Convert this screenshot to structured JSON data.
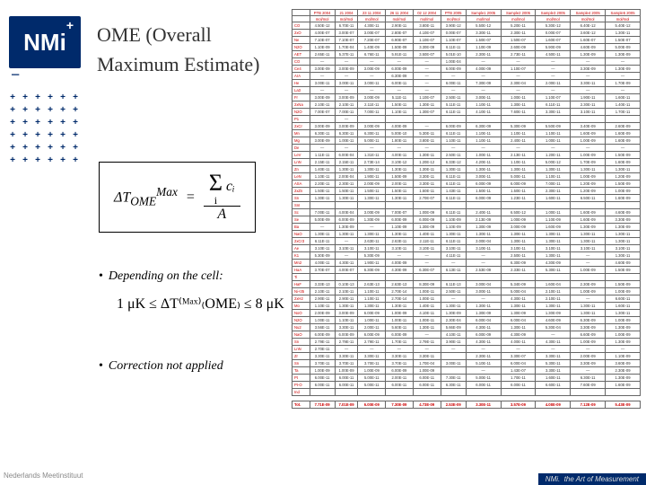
{
  "logo": {
    "text": "NMi",
    "plus": "+",
    "minus": "−"
  },
  "plusgrid_rows": 6,
  "plusgrid_cols": 6,
  "title": "OME (Overall Maximum Estimate)",
  "formula1": {
    "lhs_prefix": "Δ",
    "lhs_body": "T",
    "lhs_sup": "Max",
    "lhs_sub": "OME",
    "eq": "=",
    "sigma": "Σ",
    "sigma_top": "",
    "sigma_bot": "i",
    "sigma_arg": "cᵢ",
    "denom": "A"
  },
  "bullet1": "Depending on the cell:",
  "formula2": "1 μK ≤ ΔT⁽ᴹᵃˣ⁾₍OME₎ ≤ 8 μK",
  "bullet2": "Correction not applied",
  "footer_left": "Nederlands Meetinstituut",
  "footer_right_a": "NMi.",
  "footer_right_b": "the Art of Measurement",
  "table": {
    "head_blank": "",
    "cols": [
      {
        "h1": "PTB 2004",
        "h2": "mol/mol"
      },
      {
        "h1": "21 2004",
        "h2": "mol/mol"
      },
      {
        "h1": "23 11 2004",
        "h2": "mol/mol"
      },
      {
        "h1": "26 11 2004",
        "h2": "mol/mol"
      },
      {
        "h1": "02 12 2004",
        "h2": "mol/mol"
      },
      {
        "h1": "PTB 2005",
        "h2": "mol/mol"
      },
      {
        "h1": "Sample1 2005",
        "h2": "mol/mol"
      },
      {
        "h1": "Sample2 2005",
        "h2": "mol/mol"
      },
      {
        "h1": "Sample3 2005",
        "h2": "mol/mol"
      },
      {
        "h1": "Sample4 2005",
        "h2": "mol/mol"
      },
      {
        "h1": "Sample5 2005",
        "h2": "mol/mol"
      }
    ],
    "rows": [
      {
        "lab": "CO",
        "v": [
          "4.50E-12",
          "6.70E-11",
          "4.30E-11",
          "2.90E-11",
          "3.80E-11",
          "3.90E-12",
          "5.50E-12",
          "5.20E-11",
          "5.30E-12",
          "6.40E-12",
          "5.40E-12"
        ]
      },
      {
        "lab": "2xO",
        "v": [
          "4.00E-07",
          "3.00E-07",
          "3.00E-07",
          "2.80E-07",
          "4.10E-07",
          "0.00E-07",
          "3.30E-11",
          "2.30E-11",
          "0.00E-07",
          "3.60E-12",
          "1.30E-11"
        ]
      },
      {
        "lab": "Ne",
        "v": [
          "7.10E-07",
          "7.10E-07",
          "7.20E-07",
          "6.90E-07",
          "1.10E-07",
          "1.10E-07",
          "1.50E-07",
          "1.50E-07",
          "1.60E-07",
          "1.60E-07",
          "1.50E-07"
        ]
      },
      {
        "lab": "N2O",
        "v": [
          "1.10E-09",
          "1.70E-04",
          "1.40E-09",
          "1.50E-09",
          "3.30E-09",
          "6.11E-11",
          "1.10E-09",
          "2.60E-09",
          "5.90E-09",
          "4.60E-09",
          "5.00E-09"
        ]
      },
      {
        "lab": "AET",
        "v": [
          "2.65E-11",
          "5.37E-11",
          "6.76E-11",
          "5.91E-11",
          "3.50E-07",
          "5.01E-10",
          "2.30E-11",
          "2.73E-11",
          "4.50E-11",
          "1.30E-09",
          "1.30E-09"
        ]
      },
      {
        "lab": "CO",
        "v": [
          "—",
          "—",
          "—",
          "—",
          "—",
          "1.00E-04",
          "—",
          "—",
          "—",
          "—",
          "—"
        ]
      },
      {
        "lab": "Ce4",
        "v": [
          "3.00E-09",
          "3.00E-09",
          "3.00E-09",
          "6.00E-09",
          "—",
          "6.00E-09",
          "4.00E-09",
          "1.10E-07",
          "—",
          "3.30E-09",
          "1.30E-09"
        ]
      },
      {
        "lab": "ArA",
        "v": [
          "—",
          "—",
          "—",
          "6.30E-09",
          "—",
          "—",
          "—",
          "—",
          "—",
          "—",
          "—"
        ]
      },
      {
        "lab": "He",
        "v": [
          "3.00E-11",
          "3.00E-11",
          "3.00E-11",
          "6.00E-11",
          "—",
          "6.00E-11",
          "7.30E-09",
          "2.30E-04",
          "2.00E-11",
          "3.30E-11",
          "1.70E-09"
        ]
      },
      {
        "lab": "La3",
        "v": [
          "—",
          "—",
          "—",
          "—",
          "—",
          "—",
          "—",
          "—",
          "—",
          "—",
          "—"
        ]
      },
      {
        "lab": "Fr",
        "v": [
          "3.00E-09",
          "3.00E-09",
          "3.00E-09",
          "5.11E-11",
          "1.10E-07",
          "2.50E-11",
          "3.00E-11",
          "1.00E-11",
          "1.10E-07",
          "1.90E-11",
          "1.60E-11"
        ]
      },
      {
        "lab": "2xNa",
        "v": [
          "2.10E-11",
          "2.10E-11",
          "2.11E-11",
          "1.50E-11",
          "1.30E-11",
          "5.11E-11",
          "1.10E-11",
          "1.30E-11",
          "6.11E-11",
          "2.30E-11",
          "1.40E-11"
        ]
      },
      {
        "lab": "N2O",
        "v": [
          "7.00E-07",
          "7.00E-11",
          "7.00E-11",
          "1.10E-11",
          "1.30E-07",
          "6.11E-11",
          "4.10E-11",
          "7.60E-11",
          "3.30E-11",
          "3.10E-11",
          "1.70E-11"
        ]
      },
      {
        "lab": "P1",
        "v": [
          "",
          "—",
          "",
          "",
          "",
          "",
          "",
          "",
          "",
          "",
          ""
        ]
      },
      {
        "lab": "2xCr",
        "v": [
          "3.00E-09",
          "3.00E-09",
          "3.00E-09",
          "4.00E-09",
          "—",
          "6.00E-09",
          "6.30E-09",
          "5.30E-09",
          "5.50E-09",
          "3.40E-09",
          "2.60E-09"
        ]
      },
      {
        "lab": "Mn",
        "v": [
          "6.30E-11",
          "6.30E-11",
          "6.30E-11",
          "5.00E-10",
          "5.30E-11",
          "6.11E-11",
          "1.10E-11",
          "1.10E-11",
          "1.10E-11",
          "1.60E-09",
          "1.60E-09"
        ]
      },
      {
        "lab": "Mg",
        "v": [
          "3.00E-09",
          "1.00E-11",
          "5.00E-11",
          "1.80E-11",
          "3.80E-11",
          "1.10E-11",
          "1.10E-11",
          "2.40E-11",
          "1.00E-11",
          "1.00E-09",
          "1.60E-09"
        ]
      },
      {
        "lab": "De",
        "v": [
          "—",
          "—",
          "—",
          "—",
          "—",
          "—",
          "—",
          "—",
          "—",
          "—",
          "—"
        ]
      },
      {
        "lab": "LeV",
        "v": [
          "1.11E-11",
          "6.00E-04",
          "1.31E-11",
          "4.00E-11",
          "1.30E-11",
          "2.50E-11",
          "1.00E-11",
          "2.13E-11",
          "1.20E-11",
          "1.00E-09",
          "1.50E-09"
        ]
      },
      {
        "lab": "LnN",
        "v": [
          "2.15E-11",
          "2.15E-11",
          "2.73E-14",
          "3.10E-12",
          "1.20E-12",
          "6.33E-12",
          "4.20E-11",
          "1.10E-11",
          "5.00E-12",
          "1.70E-09",
          "1.60E-09"
        ]
      },
      {
        "lab": "Zn",
        "v": [
          "1.40E-11",
          "1.30E-11",
          "1.30E-11",
          "1.30E-11",
          "1.30E-11",
          "1.30E-11",
          "1.30E-11",
          "1.30E-11",
          "1.30E-11",
          "1.30E-11",
          "1.30E-11"
        ]
      },
      {
        "lab": "LeN",
        "v": [
          "1.10E-11",
          "2.00E-04",
          "1.90E-11",
          "1.50E-09",
          "3.30E-11",
          "6.11E-11",
          "3.00E-11",
          "5.00E-11",
          "1.10E-11",
          "1.00E-09",
          "1.20E-09"
        ]
      },
      {
        "lab": "ASA",
        "v": [
          "2.20E-11",
          "2.30E-11",
          "2.00E-09",
          "2.00E-11",
          "3.30E-11",
          "6.11E-11",
          "6.00E-09",
          "6.00E-09",
          "7.00E-11",
          "1.20E-09",
          "1.50E-09"
        ]
      },
      {
        "lab": "2xZn",
        "v": [
          "1.50E-11",
          "1.50E-11",
          "1.50E-11",
          "1.50E-11",
          "1.50E-11",
          "1.43E-11",
          "1.50E-11",
          "1.50E-11",
          "2.30E-11",
          "1.20E-09",
          "1.00E-09"
        ]
      },
      {
        "lab": "Sn",
        "v": [
          "1.30E-11",
          "1.30E-11",
          "1.30E-11",
          "1.30E-11",
          "2.70E-07",
          "6.11E-11",
          "6.00E-09",
          "1.23E-11",
          "1.60E-11",
          "6.50E-11",
          "1.60E-09"
        ]
      },
      {
        "lab": "SnI",
        "v": [
          "",
          "",
          "",
          "",
          "",
          "",
          "",
          "",
          "",
          "",
          ""
        ]
      },
      {
        "lab": "Sc",
        "v": [
          "7.00E-11",
          "4.00E-04",
          "3.00E-09",
          "7.00E-07",
          "1.00E-09",
          "6.11E-11",
          "2.40E-11",
          "6.50E-12",
          "1.00E-11",
          "1.60E-09",
          "4.60E-09"
        ]
      },
      {
        "lab": "Se",
        "v": [
          "5.00E-09",
          "6.00E-09",
          "1.30E-09",
          "6.00E-09",
          "6.00E-09",
          "1.10E-09",
          "2.13E-09",
          "1.00E-09",
          "1.10E-09",
          "1.60E-09",
          "3.30E-09"
        ]
      },
      {
        "lab": "Ba",
        "v": [
          "—",
          "1.30E-09",
          "—",
          "1.10E-09",
          "1.30E-09",
          "1.10E-09",
          "1.30E-09",
          "3.00E-09",
          "1.60E-09",
          "1.30E-09",
          "1.30E-09"
        ]
      },
      {
        "lab": "NaO",
        "v": [
          "1.30E-11",
          "1.30E-11",
          "1.30E-11",
          "1.30E-11",
          "1.40E-11",
          "1.30E-11",
          "1.30E-11",
          "1.30E-11",
          "1.30E-11",
          "1.30E-11",
          "1.30E-11"
        ]
      },
      {
        "lab": "2xCr3",
        "v": [
          "6.11E-11",
          "—",
          "2.63E-11",
          "2.63E-11",
          "2.11E-11",
          "6.11E-11",
          "3.00E-04",
          "1.30E-11",
          "1.30E-11",
          "1.30E-11",
          "1.30E-11"
        ]
      },
      {
        "lab": "Ae",
        "v": [
          "3.10E-11",
          "3.10E-11",
          "3.10E-11",
          "3.10E-11",
          "3.10E-11",
          "3.10E-11",
          "3.10E-11",
          "3.10E-11",
          "3.10E-11",
          "3.10E-11",
          "3.10E-11"
        ]
      },
      {
        "lab": "K1",
        "v": [
          "5.30E-09",
          "—",
          "5.30E-09",
          "—",
          "—",
          "4.11E-11",
          "—",
          "2.50E-11",
          "1.30E-11",
          "—",
          "1.30E-11"
        ]
      },
      {
        "lab": "Mn2",
        "v": [
          "4.00E-11",
          "4.30E-11",
          "1.90E-11",
          "4.00E-09",
          "—",
          "—",
          "—",
          "6.30E-09",
          "4.30E-09",
          "—",
          "4.60E-09"
        ]
      },
      {
        "lab": "HaA",
        "v": [
          "3.70E-07",
          "4.00E-07",
          "6.30E-09",
          "4.30E-09",
          "6.30E-07",
          "6.13E-11",
          "2.53E-09",
          "2.33E-11",
          "5.30E-11",
          "1.00E-09",
          "1.50E-09"
        ]
      },
      {
        "lab": "Ti",
        "v": [
          "",
          "",
          "",
          "",
          "",
          "",
          "",
          "",
          "",
          "",
          ""
        ]
      },
      {
        "lab": "HaF",
        "v": [
          "3.33E-13",
          "0.10E-13",
          "2.63E-13",
          "2.63E-13",
          "8.30E-09",
          "6.11E-13",
          "3.00E-04",
          "5.34E-09",
          "1.60E-04",
          "2.30E-09",
          "1.50E-09"
        ]
      },
      {
        "lab": "Ni+35",
        "v": [
          "2.10E-11",
          "2.10E-11",
          "1.10E-11",
          "2.70E-14",
          "1.00E-11",
          "2.50E-11",
          "3.00E-11",
          "5.00E-04",
          "2.10E-11",
          "1.00E-09",
          "1.00E-09"
        ]
      },
      {
        "lab": "2xH2",
        "v": [
          "2.90E-11",
          "2.90E-11",
          "1.10E-11",
          "2.70E-14",
          "1.00E-11",
          "—",
          "—",
          "4.30E-11",
          "2.10E-11",
          "—",
          "6.60E-11"
        ]
      },
      {
        "lab": "Mo",
        "v": [
          "1.10E-11",
          "1.30E-11",
          "1.30E-11",
          "1.30E-11",
          "1.40E-11",
          "1.30E-11",
          "1.30E-11",
          "1.30E-11",
          "1.30E-11",
          "1.30E-11",
          "1.60E-11"
        ]
      },
      {
        "lab": "NoO",
        "v": [
          "2.00E-09",
          "3.00E-09",
          "6.00E-09",
          "1.00E-09",
          "4.10E-11",
          "1.30E-09",
          "1.30E-09",
          "1.30E-09",
          "1.30E-09",
          "1.30E-11",
          "1.30E-11"
        ]
      },
      {
        "lab": "N2O",
        "v": [
          "1.00E-11",
          "1.10E-11",
          "1.00E-11",
          "1.00E-11",
          "1.00E-11",
          "2.30E-04",
          "6.00E-04",
          "6.00E-04",
          "4.60E-09",
          "6.30E-09",
          "1.00E-09"
        ]
      },
      {
        "lab": "Nu2",
        "v": [
          "3.56E-11",
          "3.30E-11",
          "2.00E-11",
          "5.60E-11",
          "1.30E-11",
          "5.66E-09",
          "4.30E-11",
          "1.30E-11",
          "5.30E-04",
          "3.30E-09",
          "1.30E-09"
        ]
      },
      {
        "lab": "NaO",
        "v": [
          "6.00E-09",
          "6.00E-09",
          "6.00E-09",
          "6.00E-09",
          "—",
          "4.10E-11",
          "6.00E-09",
          "4.30E-09",
          "—",
          "6.60E-09",
          "1.00E-09"
        ]
      },
      {
        "lab": "Sn",
        "v": [
          "2.79E-11",
          "2.79E-11",
          "2.79E-11",
          "1.70E-11",
          "2.79E-11",
          "3.90E-11",
          "4.30E-11",
          "4.00E-11",
          "4.30E-11",
          "1.00E-09",
          "1.30E-09"
        ]
      },
      {
        "lab": "LnN",
        "v": [
          "2.70E-11",
          "—",
          "—",
          "—",
          "—",
          "—",
          "—",
          "—",
          "—",
          "—",
          "—"
        ]
      },
      {
        "lab": "Zr",
        "v": [
          "3.30E-11",
          "3.30E-11",
          "3.30E-11",
          "3.30E-11",
          "3.30E-11",
          "",
          "2.30E-11",
          "3.30E-07",
          "3.30E-11",
          "2.00E-09",
          "1.10E-09"
        ]
      },
      {
        "lab": "Sn",
        "v": [
          "3.70E-11",
          "3.70E-11",
          "3.70E-11",
          "3.70E-11",
          "1.70E-04",
          "3.00E-11",
          "5.10E-11",
          "6.00E-04",
          "5.30E-11",
          "3.30E-09",
          "3.60E-09"
        ]
      },
      {
        "lab": "Ta",
        "v": [
          "1.00E-09",
          "1.00E-09",
          "1.00E-09",
          "6.00E-09",
          "1.00E-09",
          "",
          "—",
          "1.43E-07",
          "3.30E-11",
          "—",
          "2.30E-09"
        ]
      },
      {
        "lab": "Pt",
        "v": [
          "6.00E-11",
          "6.00E-11",
          "5.00E-11",
          "2.00E-11",
          "6.00E-11",
          "7.30E-11",
          "5.00E-11",
          "1.70E-11",
          "1.60E-11",
          "6.30E-11",
          "1.30E-09"
        ]
      },
      {
        "lab": "Pt-O",
        "v": [
          "6.00E-11",
          "6.00E-11",
          "5.00E-11",
          "6.00E-11",
          "6.00E-11",
          "6.30E-11",
          "6.00E-11",
          "6.00E-11",
          "6.60E-11",
          "7.60E-09",
          "1.60E-09"
        ]
      },
      {
        "lab": "Ind",
        "v": [
          "",
          "",
          "",
          "",
          "",
          "",
          "",
          "",
          "",
          "",
          ""
        ]
      }
    ],
    "total": {
      "lab": "Tot.",
      "v": [
        "7.71E-09",
        "7.01E-09",
        "6.00E-09",
        "7.30E-09",
        "4.73E-09",
        "2.53E-09",
        "3.30E-11",
        "3.57E-09",
        "4.08E-09",
        "7.12E-09",
        "5.43E-09"
      ]
    }
  }
}
